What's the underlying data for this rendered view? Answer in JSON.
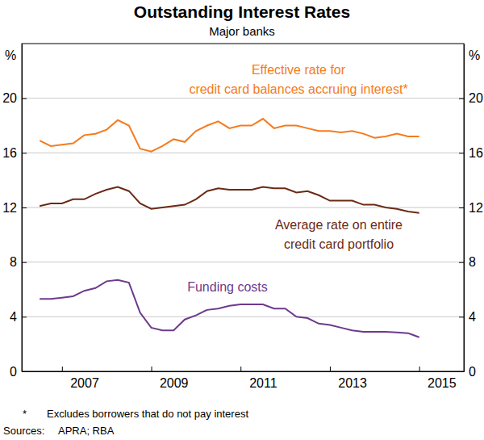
{
  "chart_data": {
    "type": "line",
    "title": "Outstanding Interest Rates",
    "subtitle": "Major banks",
    "y_unit": "%",
    "x": [
      2006.5,
      2006.75,
      2007.0,
      2007.25,
      2007.5,
      2007.75,
      2008.0,
      2008.25,
      2008.5,
      2008.75,
      2009.0,
      2009.25,
      2009.5,
      2009.75,
      2010.0,
      2010.25,
      2010.5,
      2010.75,
      2011.0,
      2011.25,
      2011.5,
      2011.75,
      2012.0,
      2012.25,
      2012.5,
      2012.75,
      2013.0,
      2013.25,
      2013.5,
      2013.75,
      2014.0,
      2014.25,
      2014.5,
      2014.75,
      2015.0
    ],
    "xlim": [
      2006.1,
      2016
    ],
    "xticks": [
      2007,
      2009,
      2011,
      2013,
      2015
    ],
    "ylim": [
      0,
      24
    ],
    "yticks": [
      0,
      4,
      8,
      12,
      16,
      20
    ],
    "y2lim": [
      0,
      24
    ],
    "y2ticks": [
      0,
      4,
      8,
      12,
      16,
      20
    ],
    "grid": true,
    "series": [
      {
        "name": "Effective rate for\ncredit card balances accruing interest*",
        "color": "#f47b20",
        "line_style": "solid",
        "marker": "none",
        "values": [
          16.9,
          16.5,
          16.6,
          16.7,
          17.3,
          17.4,
          17.7,
          18.4,
          18.0,
          16.3,
          16.1,
          16.5,
          17.0,
          16.8,
          17.6,
          18.0,
          18.3,
          17.8,
          18.0,
          18.0,
          18.5,
          17.8,
          18.0,
          18.0,
          17.8,
          17.6,
          17.6,
          17.5,
          17.6,
          17.4,
          17.1,
          17.2,
          17.4,
          17.2,
          17.2
        ]
      },
      {
        "name": "Average rate on entire\ncredit card portfolio",
        "color": "#6b2a14",
        "line_style": "solid",
        "marker": "none",
        "values": [
          12.1,
          12.3,
          12.3,
          12.6,
          12.6,
          13.0,
          13.3,
          13.5,
          13.2,
          12.3,
          11.9,
          12.0,
          12.1,
          12.2,
          12.6,
          13.2,
          13.4,
          13.3,
          13.3,
          13.3,
          13.5,
          13.4,
          13.4,
          13.1,
          13.2,
          12.9,
          12.5,
          12.5,
          12.5,
          12.2,
          12.2,
          12.0,
          11.9,
          11.7,
          11.6
        ]
      },
      {
        "name": "Funding costs",
        "color": "#6d3a8c",
        "line_style": "solid",
        "marker": "none",
        "values": [
          5.3,
          5.3,
          5.4,
          5.5,
          5.9,
          6.1,
          6.6,
          6.7,
          6.5,
          4.3,
          3.2,
          3.0,
          3.0,
          3.8,
          4.1,
          4.5,
          4.6,
          4.8,
          4.9,
          4.9,
          4.9,
          4.6,
          4.6,
          4.0,
          3.9,
          3.5,
          3.4,
          3.2,
          3.0,
          2.9,
          2.9,
          2.9,
          2.85,
          2.8,
          2.5
        ]
      }
    ],
    "footnote": {
      "marker": "*",
      "text": "Excludes borrowers that do not pay interest"
    },
    "source": {
      "label": "Sources:",
      "text": "APRA; RBA"
    }
  }
}
